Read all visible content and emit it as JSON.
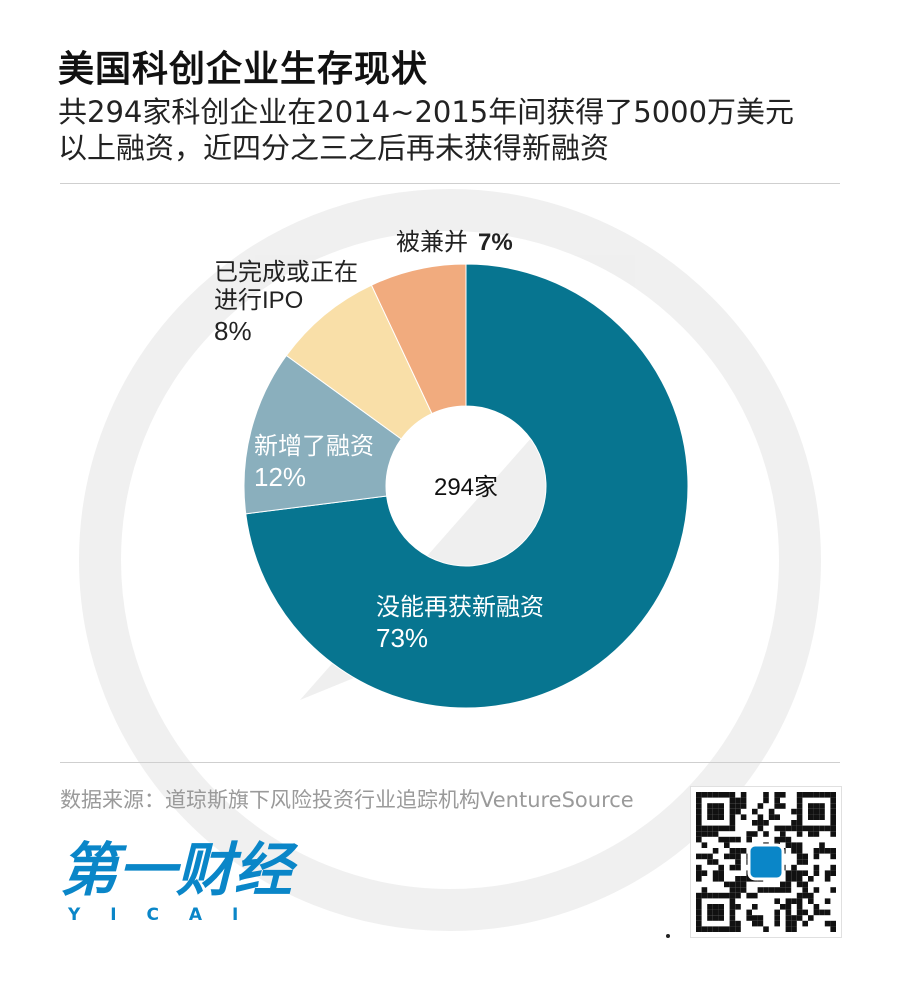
{
  "header": {
    "title": "美国科创企业生存现状",
    "subtitle": "共294家科创企业在2014~2015年间获得了5000万美元\n以上融资，近四分之三之后再未获得新融资"
  },
  "chart_data": {
    "type": "pie",
    "donut": true,
    "center_label": "294家",
    "total": 294,
    "slices": [
      {
        "label": "没能再获新融资",
        "value": 73,
        "display": "73%",
        "color": "#077590"
      },
      {
        "label": "新增了融资",
        "value": 12,
        "display": "12%",
        "color": "#8aafbd"
      },
      {
        "label": "已完成或正在\n进行IPO",
        "value": 8,
        "display": "8%",
        "color": "#f9dfa8"
      },
      {
        "label": "被兼并",
        "value": 7,
        "display": "7%",
        "color": "#f1ab7e"
      }
    ]
  },
  "footer": {
    "source": "数据来源：道琼斯旗下风险投资行业追踪机构VentureSource",
    "logo_text": "第一财经",
    "logo_sub": "Y I C A I",
    "brand_color": "#0a86c8"
  }
}
